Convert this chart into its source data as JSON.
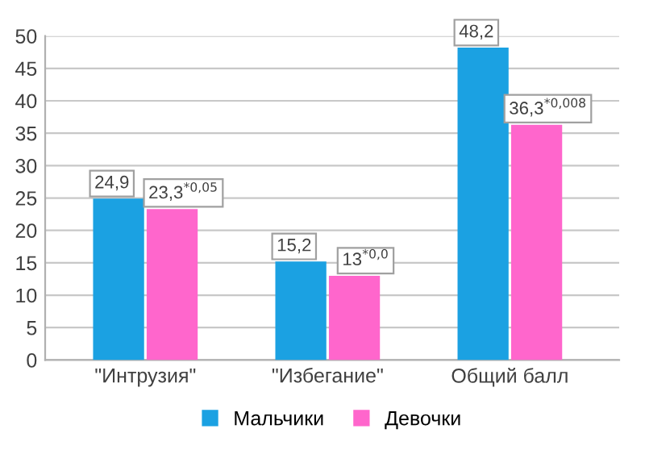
{
  "chart_data": {
    "type": "bar",
    "categories": [
      "\"Интрузия\"",
      "\"Избегание\"",
      "Общий балл"
    ],
    "series": [
      {
        "name": "Мальчики",
        "color": "#1ba1e2",
        "values": [
          24.9,
          15.2,
          48.2
        ],
        "value_labels": [
          "24,9",
          "15,2",
          "48,2"
        ]
      },
      {
        "name": "Девочки",
        "color": "#ff66cc",
        "values": [
          23.3,
          13,
          36.3
        ],
        "value_labels": [
          "23,3$^{*0,05}$",
          "13$^{*0,0}$",
          "36,3$^{*0,008}$"
        ]
      }
    ],
    "ylim": [
      0,
      50
    ],
    "yticks": [
      0,
      5,
      10,
      15,
      20,
      25,
      30,
      35,
      40,
      45,
      50
    ],
    "grid": "y",
    "legend": "bottom"
  }
}
